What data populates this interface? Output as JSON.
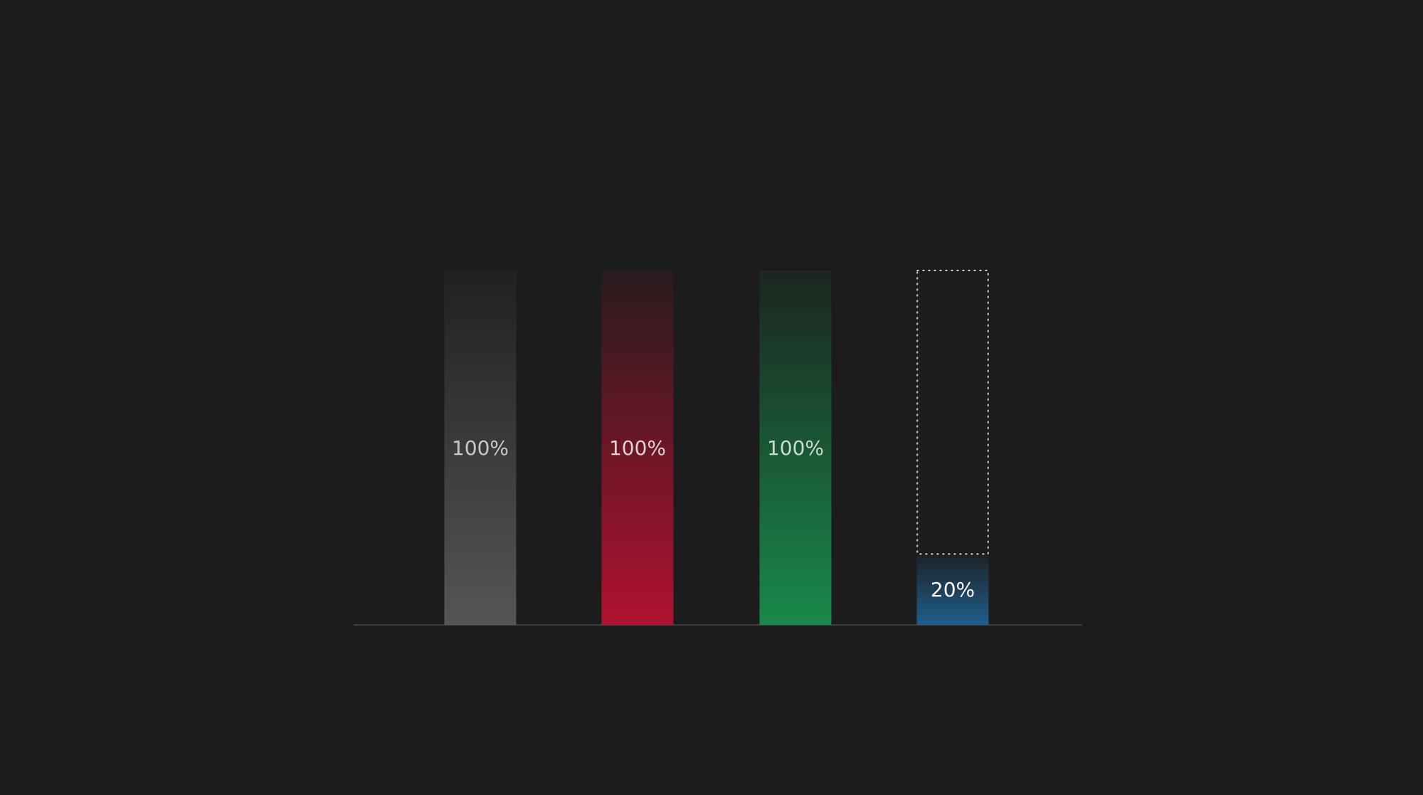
{
  "chart_data": {
    "type": "bar",
    "categories": [
      "",
      "",
      "",
      ""
    ],
    "values": [
      100,
      100,
      100,
      20
    ],
    "value_labels": [
      "100%",
      "100%",
      "100%",
      "20%"
    ],
    "ylim": [
      0,
      100
    ],
    "grid": true,
    "title": "",
    "xlabel": "",
    "ylabel": "",
    "bar_colors": [
      "#555555",
      "#b0112f",
      "#18894a",
      "#1f5e8c"
    ],
    "label_colors": [
      "#c8c8c8",
      "#e0d0d0",
      "#c8dccf",
      "#ffffff"
    ],
    "remaining_outline": [
      false,
      false,
      false,
      true
    ]
  },
  "colors": {
    "background": "#1c1c1c",
    "gridline": "#333333",
    "baseline": "#4a4a4a",
    "outline": "#d0d0d0"
  }
}
